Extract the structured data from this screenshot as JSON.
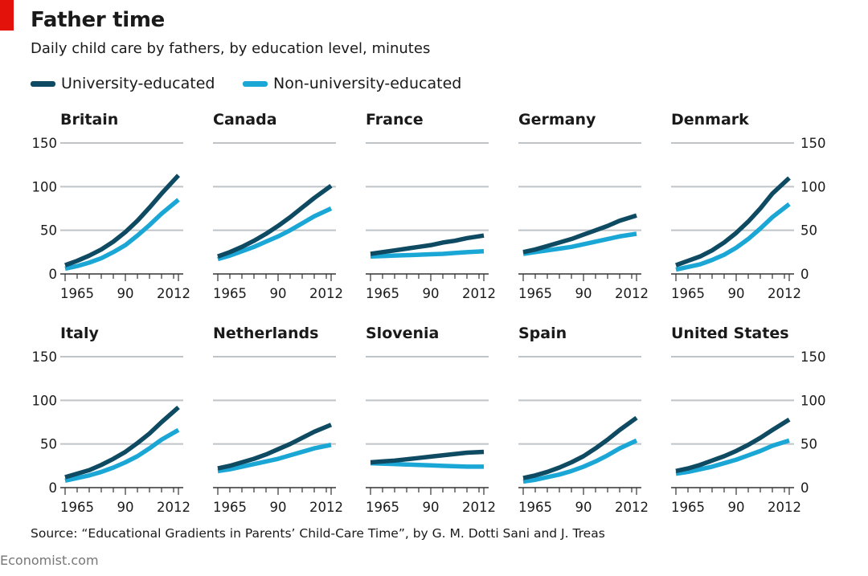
{
  "header": {
    "title": "Father time",
    "subtitle": "Daily child care by fathers, by education level, minutes"
  },
  "legend": [
    {
      "label": "University-educated",
      "color": "#0e4a62"
    },
    {
      "label": "Non-university-educated",
      "color": "#1ba7d6"
    }
  ],
  "footer": {
    "source": "Source: “Educational Gradients in Parents’ Child-Care Time”, by G. M. Dotti Sani and J. Treas",
    "brand": "Economist.com"
  },
  "chart_data": {
    "type": "line",
    "y_ticks": [
      "0",
      "50",
      "100",
      "150"
    ],
    "ylim": [
      0,
      150
    ],
    "xlim": [
      1965,
      2012
    ],
    "x_tick_labels": [
      "1965",
      "90",
      "2012"
    ],
    "x": [
      1965,
      1970,
      1975,
      1980,
      1985,
      1990,
      1995,
      2000,
      2005,
      2012
    ],
    "grid": true,
    "panels": [
      {
        "title": "Britain",
        "series": [
          {
            "name": "University-educated",
            "values": [
              10,
              15,
              21,
              28,
              37,
              48,
              61,
              76,
              92,
              113
            ]
          },
          {
            "name": "Non-university-educated",
            "values": [
              6,
              9,
              13,
              18,
              25,
              33,
              44,
              56,
              69,
              85
            ]
          }
        ]
      },
      {
        "title": "Canada",
        "series": [
          {
            "name": "University-educated",
            "values": [
              20,
              25,
              31,
              38,
              46,
              55,
              65,
              76,
              87,
              101
            ]
          },
          {
            "name": "Non-university-educated",
            "values": [
              17,
              21,
              26,
              31,
              37,
              43,
              50,
              58,
              66,
              75
            ]
          }
        ]
      },
      {
        "title": "France",
        "series": [
          {
            "name": "University-educated",
            "values": [
              23,
              25,
              27,
              29,
              31,
              33,
              36,
              38,
              41,
              44
            ]
          },
          {
            "name": "Non-university-educated",
            "values": [
              20,
              20.5,
              21,
              21.5,
              22,
              22.5,
              23,
              24,
              25,
              26
            ]
          }
        ]
      },
      {
        "title": "Germany",
        "series": [
          {
            "name": "University-educated",
            "values": [
              25,
              28,
              32,
              36,
              40,
              45,
              50,
              55,
              61,
              67
            ]
          },
          {
            "name": "Non-university-educated",
            "values": [
              23,
              25,
              27,
              29,
              31,
              34,
              37,
              40,
              43,
              46
            ]
          }
        ]
      },
      {
        "title": "Denmark",
        "series": [
          {
            "name": "University-educated",
            "values": [
              10,
              15,
              20,
              27,
              36,
              47,
              60,
              75,
              92,
              110
            ]
          },
          {
            "name": "Non-university-educated",
            "values": [
              5,
              8,
              11,
              16,
              22,
              30,
              40,
              52,
              65,
              80
            ]
          }
        ]
      },
      {
        "title": "Italy",
        "series": [
          {
            "name": "University-educated",
            "values": [
              12,
              16,
              20,
              26,
              33,
              41,
              51,
              62,
              75,
              92
            ]
          },
          {
            "name": "Non-university-educated",
            "values": [
              8,
              11,
              14,
              18,
              23,
              29,
              36,
              45,
              55,
              66
            ]
          }
        ]
      },
      {
        "title": "Netherlands",
        "series": [
          {
            "name": "University-educated",
            "values": [
              22,
              25,
              29,
              33,
              38,
              44,
              50,
              57,
              64,
              72
            ]
          },
          {
            "name": "Non-university-educated",
            "values": [
              19,
              21,
              24,
              27,
              30,
              33,
              37,
              41,
              45,
              49
            ]
          }
        ]
      },
      {
        "title": "Slovenia",
        "series": [
          {
            "name": "University-educated",
            "values": [
              29,
              30,
              31,
              32.5,
              34,
              35.5,
              37,
              38.5,
              40,
              41
            ]
          },
          {
            "name": "Non-university-educated",
            "values": [
              28,
              27.5,
              27,
              26.5,
              26,
              25.5,
              25,
              24.5,
              24,
              24
            ]
          }
        ]
      },
      {
        "title": "Spain",
        "series": [
          {
            "name": "University-educated",
            "values": [
              11,
              14,
              18,
              23,
              29,
              36,
              45,
              55,
              66,
              80
            ]
          },
          {
            "name": "Non-university-educated",
            "values": [
              7,
              9,
              12,
              15,
              19,
              24,
              30,
              37,
              45,
              54
            ]
          }
        ]
      },
      {
        "title": "United States",
        "series": [
          {
            "name": "University-educated",
            "values": [
              19,
              22,
              26,
              31,
              36,
              42,
              49,
              57,
              66,
              78
            ]
          },
          {
            "name": "Non-university-educated",
            "values": [
              16,
              18,
              21,
              24,
              28,
              32,
              37,
              42,
              48,
              54
            ]
          }
        ]
      }
    ]
  }
}
